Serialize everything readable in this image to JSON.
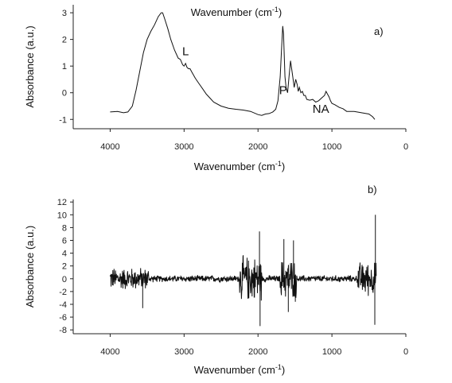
{
  "chart_data": [
    {
      "type": "line",
      "panel_label": "a)",
      "top_label_text": "Wavenumber (cm",
      "top_label_sup": "-1",
      "top_label_close": ")",
      "xlabel_text": "Wavenumber (cm",
      "xlabel_sup": "-1",
      "xlabel_close": ")",
      "ylabel": "Absorbance (a.u.)",
      "xlim": [
        4500,
        0
      ],
      "ylim": [
        -1.35,
        3.3
      ],
      "xticks": [
        4000,
        3000,
        2000,
        1000,
        0
      ],
      "yticks": [
        -1,
        0,
        1,
        2,
        3
      ],
      "annotations": [
        {
          "text": "L",
          "x": 2980,
          "y": 1.4
        },
        {
          "text": "P",
          "x": 1660,
          "y": -0.05
        },
        {
          "text": "NA",
          "x": 1150,
          "y": -0.75
        }
      ],
      "series": [
        {
          "x": [
            4000,
            3900,
            3820,
            3760,
            3700,
            3650,
            3600,
            3550,
            3500,
            3450,
            3400,
            3350,
            3310,
            3290,
            3260,
            3220,
            3180,
            3130,
            3080,
            3050,
            3020,
            3000,
            2980,
            2960,
            2940,
            2920,
            2900,
            2880,
            2850,
            2800,
            2750,
            2700,
            2650,
            2600,
            2500,
            2400,
            2300,
            2200,
            2100,
            2000,
            1950,
            1900,
            1850,
            1800,
            1760,
            1730,
            1700,
            1680,
            1665,
            1655,
            1645,
            1635,
            1620,
            1600,
            1580,
            1560,
            1545,
            1530,
            1510,
            1490,
            1470,
            1455,
            1440,
            1420,
            1400,
            1380,
            1360,
            1340,
            1300,
            1260,
            1220,
            1180,
            1140,
            1100,
            1080,
            1060,
            1040,
            1020,
            1000,
            960,
            900,
            850,
            800,
            700,
            600,
            500,
            450,
            420
          ],
          "y": [
            -0.72,
            -0.7,
            -0.75,
            -0.72,
            -0.5,
            0.1,
            0.8,
            1.5,
            2.0,
            2.3,
            2.55,
            2.85,
            3.0,
            3.0,
            2.75,
            2.4,
            2.0,
            1.6,
            1.3,
            1.25,
            1.05,
            1.0,
            1.1,
            0.95,
            0.9,
            0.9,
            0.8,
            0.7,
            0.55,
            0.35,
            0.15,
            -0.05,
            -0.2,
            -0.35,
            -0.5,
            -0.58,
            -0.62,
            -0.65,
            -0.7,
            -0.82,
            -0.85,
            -0.8,
            -0.78,
            -0.72,
            -0.62,
            -0.3,
            0.6,
            1.7,
            2.5,
            2.2,
            1.4,
            0.6,
            0.2,
            0.0,
            0.6,
            1.2,
            0.9,
            0.6,
            0.2,
            0.5,
            0.3,
            0.05,
            0.2,
            0.0,
            0.05,
            -0.1,
            -0.1,
            -0.25,
            -0.28,
            -0.25,
            -0.35,
            -0.3,
            -0.2,
            -0.1,
            0.05,
            -0.05,
            -0.15,
            -0.3,
            -0.4,
            -0.45,
            -0.55,
            -0.6,
            -0.7,
            -0.7,
            -0.75,
            -0.8,
            -0.9,
            -1.0
          ]
        }
      ]
    },
    {
      "type": "line",
      "panel_label": "b)",
      "xlabel_text": "Wavenumber (cm",
      "xlabel_sup": "-1",
      "xlabel_close": ")",
      "ylabel": "Absorbance (a.u.)",
      "xlim": [
        4500,
        0
      ],
      "ylim": [
        -8.6,
        12.4
      ],
      "xticks": [
        4000,
        3000,
        2000,
        1000,
        0
      ],
      "yticks": [
        -8,
        -6,
        -4,
        -2,
        0,
        2,
        4,
        6,
        8,
        10,
        12
      ],
      "noise_x_start": 4000,
      "noise_x_end": 400,
      "noise_base_amplitude": 0.6,
      "noise_bursts": [
        {
          "x_from": 4000,
          "x_to": 3480,
          "amplitude": 2.0
        },
        {
          "x_from": 2250,
          "x_to": 1950,
          "amplitude": 4.0
        },
        {
          "x_from": 1700,
          "x_to": 1480,
          "amplitude": 3.5
        },
        {
          "x_from": 650,
          "x_to": 400,
          "amplitude": 3.0
        }
      ],
      "spikes": [
        {
          "x": 3560,
          "y": -4.6
        },
        {
          "x": 1980,
          "y": 7.4
        },
        {
          "x": 1972,
          "y": -7.4
        },
        {
          "x": 1650,
          "y": 6.2
        },
        {
          "x": 1590,
          "y": -5.2
        },
        {
          "x": 1520,
          "y": 6.0
        },
        {
          "x": 1495,
          "y": -3.6
        },
        {
          "x": 412,
          "y": 10.0
        },
        {
          "x": 420,
          "y": -7.2
        }
      ]
    }
  ]
}
